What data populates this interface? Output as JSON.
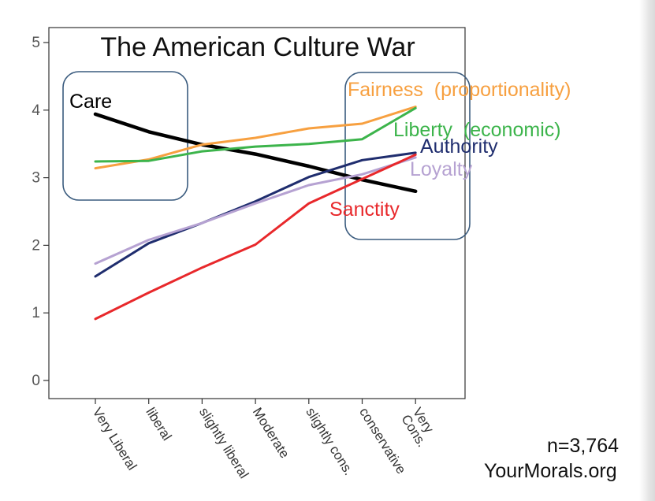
{
  "chart_data": {
    "type": "line",
    "title": "The American Culture War",
    "xlabel": "",
    "ylabel": "",
    "ylim": [
      0,
      5
    ],
    "yticks": [
      "0",
      "1",
      "2",
      "3",
      "4",
      "5"
    ],
    "categories": [
      "Very Liberal",
      "liberal",
      "slightly liberal",
      "Moderate",
      "slightly cons.",
      "conservative",
      "Very Cons."
    ],
    "series": [
      {
        "name": "Care",
        "color": "#000000",
        "values": [
          3.94,
          3.68,
          3.49,
          3.35,
          3.17,
          2.97,
          2.8
        ]
      },
      {
        "name": "Fairness  (proportionality)",
        "color": "#f7a040",
        "values": [
          3.14,
          3.27,
          3.49,
          3.59,
          3.73,
          3.8,
          4.05
        ]
      },
      {
        "name": "Liberty  (economic)",
        "color": "#3cb44b",
        "values": [
          3.24,
          3.25,
          3.39,
          3.46,
          3.5,
          3.57,
          4.03
        ]
      },
      {
        "name": "Authority",
        "color": "#1f2d6e",
        "values": [
          1.54,
          2.03,
          2.33,
          2.65,
          3.01,
          3.26,
          3.37
        ]
      },
      {
        "name": "Loyalty",
        "color": "#b6a2d2",
        "values": [
          1.73,
          2.08,
          2.33,
          2.62,
          2.89,
          3.05,
          3.3
        ]
      },
      {
        "name": "Sanctity",
        "color": "#e8282b",
        "values": [
          0.91,
          1.3,
          1.67,
          2.01,
          2.62,
          2.98,
          3.34
        ]
      }
    ]
  },
  "annotations": {
    "sample_size": "n=3,764",
    "source": "YourMorals.org"
  }
}
